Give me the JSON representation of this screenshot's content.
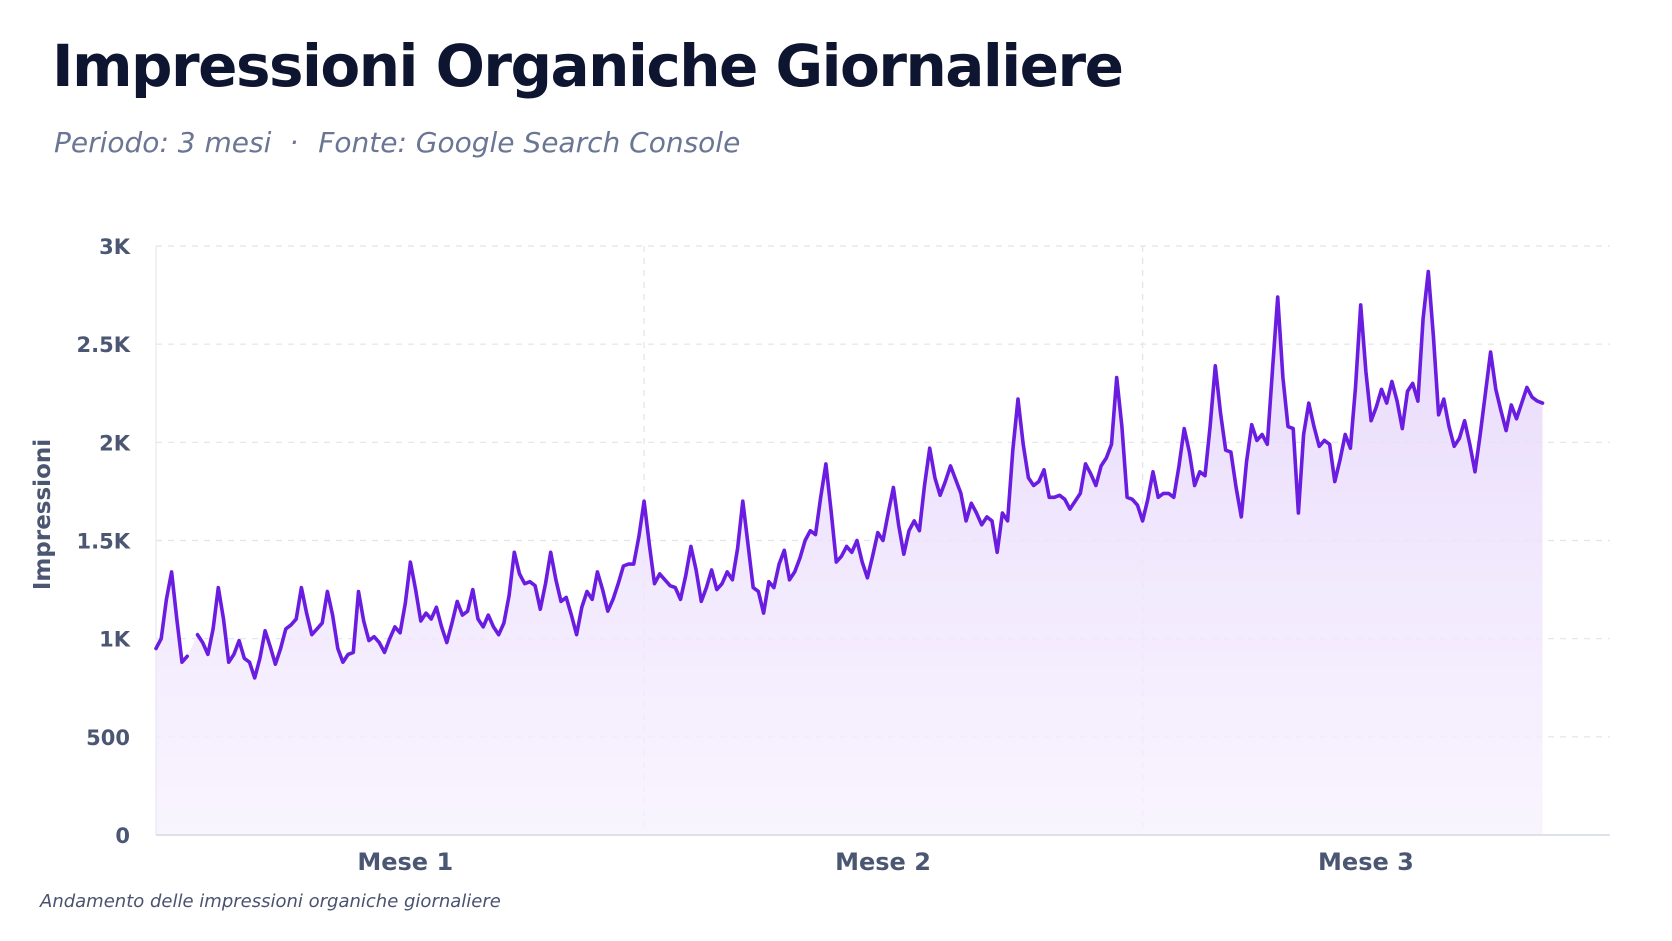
{
  "header": {
    "title": "Impressioni Organiche Giornaliere",
    "period": "Periodo: 3 mesi",
    "separator": "·",
    "source": "Fonte: Google Search Console"
  },
  "footnote": "Andamento delle impressioni organiche giornaliere",
  "chart_data": {
    "type": "area",
    "title": "Impressioni Organiche Giornaliere",
    "subtitle": "Periodo: 3 mesi · Fonte: Google Search Console",
    "xlabel": "",
    "ylabel": "Impressioni",
    "ylim": [
      0,
      3000
    ],
    "yticks": [
      0,
      500,
      1000,
      1500,
      2000,
      2500,
      3000
    ],
    "ytick_labels": [
      "0",
      "500",
      "1K",
      "1.5K",
      "2K",
      "2.5K",
      "3K"
    ],
    "xlim": [
      0,
      280
    ],
    "xtick_labels": [
      "Mese 1",
      "Mese 2",
      "Mese 3"
    ],
    "xtick_positions": [
      48,
      140,
      233
    ],
    "month_boundaries": [
      94,
      190
    ],
    "grid": true,
    "line_color": "#6a1de0",
    "fill_color": "#ece1fb",
    "series": [
      {
        "values": [
          950,
          1000,
          1200,
          1340,
          1100,
          880,
          910,
          null,
          1020,
          980,
          920,
          1050,
          1260,
          1100,
          880,
          920,
          990,
          900,
          880,
          800,
          900,
          1040,
          960,
          870,
          950,
          1050,
          1070,
          1100,
          1260,
          1130,
          1020,
          1050,
          1080,
          1240,
          1120,
          950,
          880,
          920,
          930,
          1240,
          1090,
          990,
          1010,
          980,
          930,
          1000,
          1060,
          1030,
          1180,
          1390,
          1250,
          1090,
          1130,
          1100,
          1160,
          1060,
          980,
          1080,
          1190,
          1120,
          1140,
          1250,
          1100,
          1060,
          1120,
          1060,
          1020,
          1080,
          1220,
          1440,
          1330,
          1280,
          1290,
          1270,
          1150,
          1280,
          1440,
          1300,
          1190,
          1210,
          1120,
          1020,
          1160,
          1240,
          1200,
          1340,
          1250,
          1140,
          1200,
          1280,
          1370,
          1380,
          1380,
          1520,
          1700,
          1480,
          1280,
          1330,
          1300,
          1270,
          1260,
          1200,
          1320,
          1470,
          1350,
          1190,
          1260,
          1350,
          1250,
          1280,
          1340,
          1300,
          1460,
          1700,
          1480,
          1260,
          1240,
          1130,
          1290,
          1260,
          1380,
          1450,
          1300,
          1340,
          1410,
          1500,
          1550,
          1530,
          1720,
          1890,
          1650,
          1390,
          1420,
          1470,
          1440,
          1500,
          1390,
          1310,
          1420,
          1540,
          1500,
          1640,
          1770,
          1580,
          1430,
          1550,
          1600,
          1550,
          1780,
          1970,
          1820,
          1730,
          1800,
          1880,
          1810,
          1740,
          1600,
          1690,
          1640,
          1580,
          1620,
          1600,
          1440,
          1640,
          1600,
          1960,
          2220,
          1990,
          1820,
          1780,
          1800,
          1860,
          1720,
          1720,
          1730,
          1710,
          1660,
          1700,
          1740,
          1890,
          1840,
          1780,
          1880,
          1920,
          1990,
          2330,
          2080,
          1720,
          1710,
          1680,
          1600,
          1710,
          1850,
          1720,
          1740,
          1740,
          1720,
          1880,
          2070,
          1950,
          1780,
          1850,
          1830,
          2080,
          2390,
          2150,
          1960,
          1950,
          1770,
          1620,
          1900,
          2090,
          2010,
          2040,
          1990,
          2370,
          2740,
          2330,
          2080,
          2070,
          1640,
          2040,
          2200,
          2080,
          1980,
          2010,
          1990,
          1800,
          1910,
          2040,
          1970,
          2280,
          2700,
          2360,
          2110,
          2180,
          2270,
          2200,
          2310,
          2210,
          2070,
          2260,
          2300,
          2210,
          2630,
          2870,
          2540,
          2140,
          2220,
          2080,
          1980,
          2020,
          2110,
          1990,
          1850,
          2040,
          2250,
          2460,
          2270,
          2160,
          2060,
          2190,
          2120,
          2200,
          2280,
          2230,
          2210,
          2200
        ]
      }
    ]
  }
}
